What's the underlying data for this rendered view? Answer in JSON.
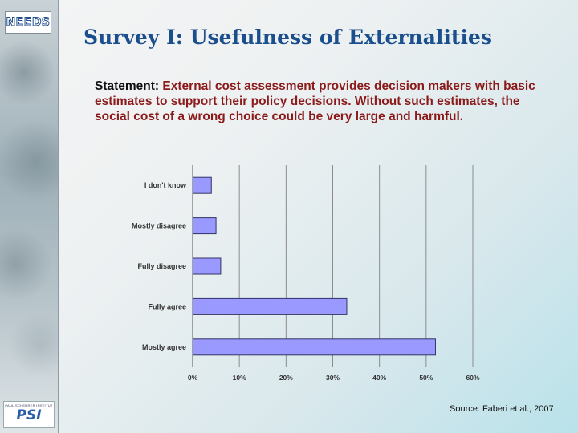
{
  "logos": {
    "top_text": "NEEDS",
    "bottom_small": "PAUL SCHERRER INSTITUT",
    "bottom_main": "PSI"
  },
  "title": "Survey I: Usefulness of Externalities",
  "statement": {
    "label": "Statement:",
    "text": "External cost assessment provides decision makers with basic estimates to support their policy decisions. Without such estimates, the social cost of a wrong choice could be very large and harmful."
  },
  "source": "Source: Faberi et al., 2007",
  "colors": {
    "bar_fill": "#9999ff",
    "bar_stroke": "#333366",
    "title": "#1b4e8c",
    "statement_text": "#8b1a1a"
  },
  "chart_data": {
    "type": "bar",
    "orientation": "horizontal",
    "categories": [
      "I don't know",
      "Mostly disagree",
      "Fully disagree",
      "Fully agree",
      "Mostly agree"
    ],
    "values": [
      4,
      5,
      6,
      33,
      52
    ],
    "x_ticks": [
      "0%",
      "10%",
      "20%",
      "30%",
      "40%",
      "50%",
      "60%"
    ],
    "xlim": [
      0,
      60
    ],
    "grid": true
  }
}
